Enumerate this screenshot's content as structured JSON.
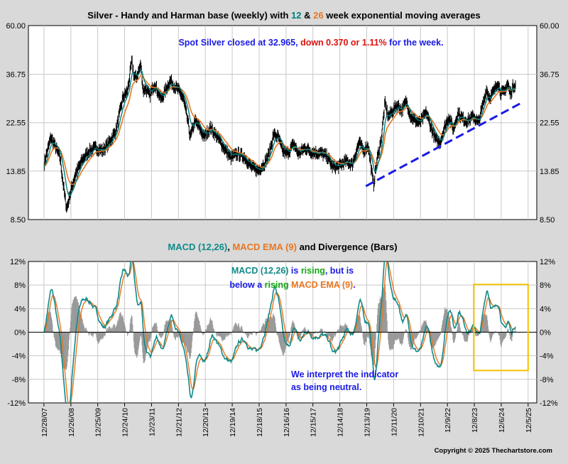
{
  "colors": {
    "background": "#d9d9d9",
    "plot_background": "#ffffff",
    "price": "#000000",
    "ema12": "#008080",
    "ema26": "#e87722",
    "macd": "#108a8a",
    "macd_signal": "#e87722",
    "divergence": "#999999",
    "trendline": "#1a1ae6",
    "highlight_box": "#f2c200",
    "note_blue": "#1a1ae6",
    "note_red": "#e01010",
    "note_green": "#13a613"
  },
  "chart_data": [
    {
      "type": "line",
      "title_parts": [
        {
          "text": "Silver - Handy and Harman base (weekly) with ",
          "color": "#000000"
        },
        {
          "text": "12",
          "color": "#008080"
        },
        {
          "text": " & ",
          "color": "#000000"
        },
        {
          "text": "26",
          "color": "#e87722"
        },
        {
          "text": " week exponential moving averages",
          "color": "#000000"
        }
      ],
      "y_scale": "log",
      "ylim": [
        8.5,
        60.0
      ],
      "y_ticks": [
        60.0,
        36.75,
        22.55,
        13.85,
        8.5
      ],
      "y_tick_labels": [
        "60.00",
        "36.75",
        "22.55",
        "13.85",
        "8.50"
      ],
      "annotation_parts": [
        {
          "text": "Spot Silver closed at 32.965, ",
          "color": "#1a1ae6"
        },
        {
          "text": "down 0.370 or 1.11%",
          "color": "#e01010"
        },
        {
          "text": " for the week.",
          "color": "#1a1ae6"
        }
      ],
      "anchor_x": [
        "2008-01-01",
        "2008-04-01",
        "2008-08-01",
        "2008-10-01",
        "2008-11-01",
        "2009-01-01",
        "2009-03-01",
        "2009-06-01",
        "2009-09-01",
        "2009-12-01",
        "2010-03-01",
        "2010-06-01",
        "2010-09-01",
        "2010-12-01",
        "2011-02-01",
        "2011-04-01",
        "2011-05-01",
        "2011-06-01",
        "2011-08-01",
        "2011-09-01",
        "2011-10-01",
        "2011-12-01",
        "2012-02-01",
        "2012-05-01",
        "2012-09-01",
        "2012-11-01",
        "2013-01-01",
        "2013-03-01",
        "2013-05-01",
        "2013-06-01",
        "2013-08-01",
        "2013-10-01",
        "2013-12-01",
        "2014-03-01",
        "2014-06-01",
        "2014-09-01",
        "2014-12-01",
        "2015-03-01",
        "2015-06-01",
        "2015-09-01",
        "2015-12-01",
        "2016-03-01",
        "2016-05-01",
        "2016-07-01",
        "2016-09-01",
        "2016-11-01",
        "2017-01-01",
        "2017-04-01",
        "2017-06-01",
        "2017-09-01",
        "2017-12-01",
        "2018-04-01",
        "2018-07-01",
        "2018-09-01",
        "2018-12-01",
        "2019-03-01",
        "2019-06-01",
        "2019-09-01",
        "2019-11-01",
        "2020-01-01",
        "2020-03-15",
        "2020-05-01",
        "2020-07-01",
        "2020-08-15",
        "2020-10-01",
        "2020-12-01",
        "2021-02-01",
        "2021-04-01",
        "2021-06-01",
        "2021-08-01",
        "2021-10-01",
        "2021-12-01",
        "2022-03-01",
        "2022-05-01",
        "2022-07-01",
        "2022-09-01",
        "2022-11-01",
        "2023-01-01",
        "2023-03-01",
        "2023-05-01",
        "2023-07-01",
        "2023-09-01",
        "2023-12-01",
        "2024-02-01",
        "2024-04-01",
        "2024-05-20",
        "2024-07-01",
        "2024-09-01",
        "2024-10-20",
        "2024-12-01",
        "2025-01-15",
        "2025-03-01",
        "2025-04-10",
        "2025-05-15",
        "2025-06-20"
      ],
      "anchor_price": [
        15.0,
        19.5,
        16.0,
        11.0,
        9.5,
        11.5,
        13.5,
        15.5,
        17.0,
        17.5,
        17.0,
        18.5,
        21.0,
        29.0,
        31.0,
        42.0,
        36.0,
        35.5,
        40.5,
        31.0,
        32.0,
        29.5,
        33.5,
        28.5,
        34.5,
        32.5,
        31.0,
        28.5,
        22.5,
        19.5,
        23.0,
        21.5,
        19.5,
        21.5,
        19.5,
        17.5,
        15.8,
        16.5,
        16.0,
        14.5,
        13.9,
        15.0,
        16.5,
        20.0,
        19.5,
        17.0,
        16.5,
        18.2,
        16.5,
        17.5,
        16.8,
        16.6,
        16.0,
        14.5,
        14.5,
        15.3,
        14.8,
        18.5,
        17.0,
        18.0,
        12.0,
        15.5,
        19.5,
        27.5,
        24.0,
        25.5,
        27.0,
        25.5,
        28.0,
        24.0,
        23.0,
        22.5,
        25.0,
        21.5,
        19.0,
        18.5,
        21.5,
        24.0,
        21.0,
        25.0,
        23.5,
        23.0,
        24.0,
        22.5,
        27.0,
        31.5,
        29.0,
        31.0,
        34.0,
        30.5,
        30.5,
        33.5,
        30.0,
        32.5,
        33.3
      ],
      "trendline": {
        "x": [
          "2019-12-01",
          "2025-09-01"
        ],
        "y": [
          11.9,
          27.5
        ]
      },
      "x_tick_labels": [
        "12/28/07",
        "12/26/08",
        "12/25/09",
        "12/24/10",
        "12/23/11",
        "12/21/12",
        "12/20/13",
        "12/19/14",
        "12/18/15",
        "12/16/16",
        "12/15/17",
        "12/14/18",
        "12/13/19",
        "12/11/20",
        "12/10/21",
        "12/9/22",
        "12/8/23",
        "12/6/24",
        "12/5/25"
      ]
    },
    {
      "type": "line",
      "title_parts": [
        {
          "text": "MACD (12,26)",
          "color": "#108a8a"
        },
        {
          "text": ", ",
          "color": "#000000"
        },
        {
          "text": "MACD EMA (9)",
          "color": "#e87722"
        },
        {
          "text": " and Divergence (Bars)",
          "color": "#000000"
        }
      ],
      "ylim": [
        -12,
        12
      ],
      "y_ticks": [
        12,
        8,
        4,
        0,
        -4,
        -8,
        -12
      ],
      "y_tick_labels": [
        "12%",
        "8%",
        "4%",
        "0%",
        "-4%",
        "-8%",
        "-12%"
      ],
      "series": [
        {
          "name": "MACD (12,26)",
          "color": "#108a8a"
        },
        {
          "name": "MACD EMA (9)",
          "color": "#e87722"
        },
        {
          "name": "Divergence (Bars)",
          "color": "#999999"
        }
      ],
      "annotation_lines": [
        [
          {
            "text": "MACD (12,26)",
            "color": "#108a8a"
          },
          {
            "text": " is ",
            "color": "#1a1ae6"
          },
          {
            "text": "rising",
            "color": "#13a613"
          },
          {
            "text": ", but is",
            "color": "#1a1ae6"
          }
        ],
        [
          {
            "text": "below a ",
            "color": "#1a1ae6"
          },
          {
            "text": "rising",
            "color": "#13a613"
          },
          {
            "text": " ",
            "color": "#1a1ae6"
          },
          {
            "text": "MACD EMA (9)",
            "color": "#e87722"
          },
          {
            "text": ".",
            "color": "#1a1ae6"
          }
        ]
      ],
      "note_lines": [
        "We interpret the indicator",
        "as being neutral."
      ],
      "highlight_box_range": {
        "x": [
          "2023-12-01",
          "2025-12-05"
        ],
        "y": [
          -6.5,
          8.1
        ]
      }
    }
  ],
  "copyright": "Copyright © 2025 Thechartstore.com"
}
